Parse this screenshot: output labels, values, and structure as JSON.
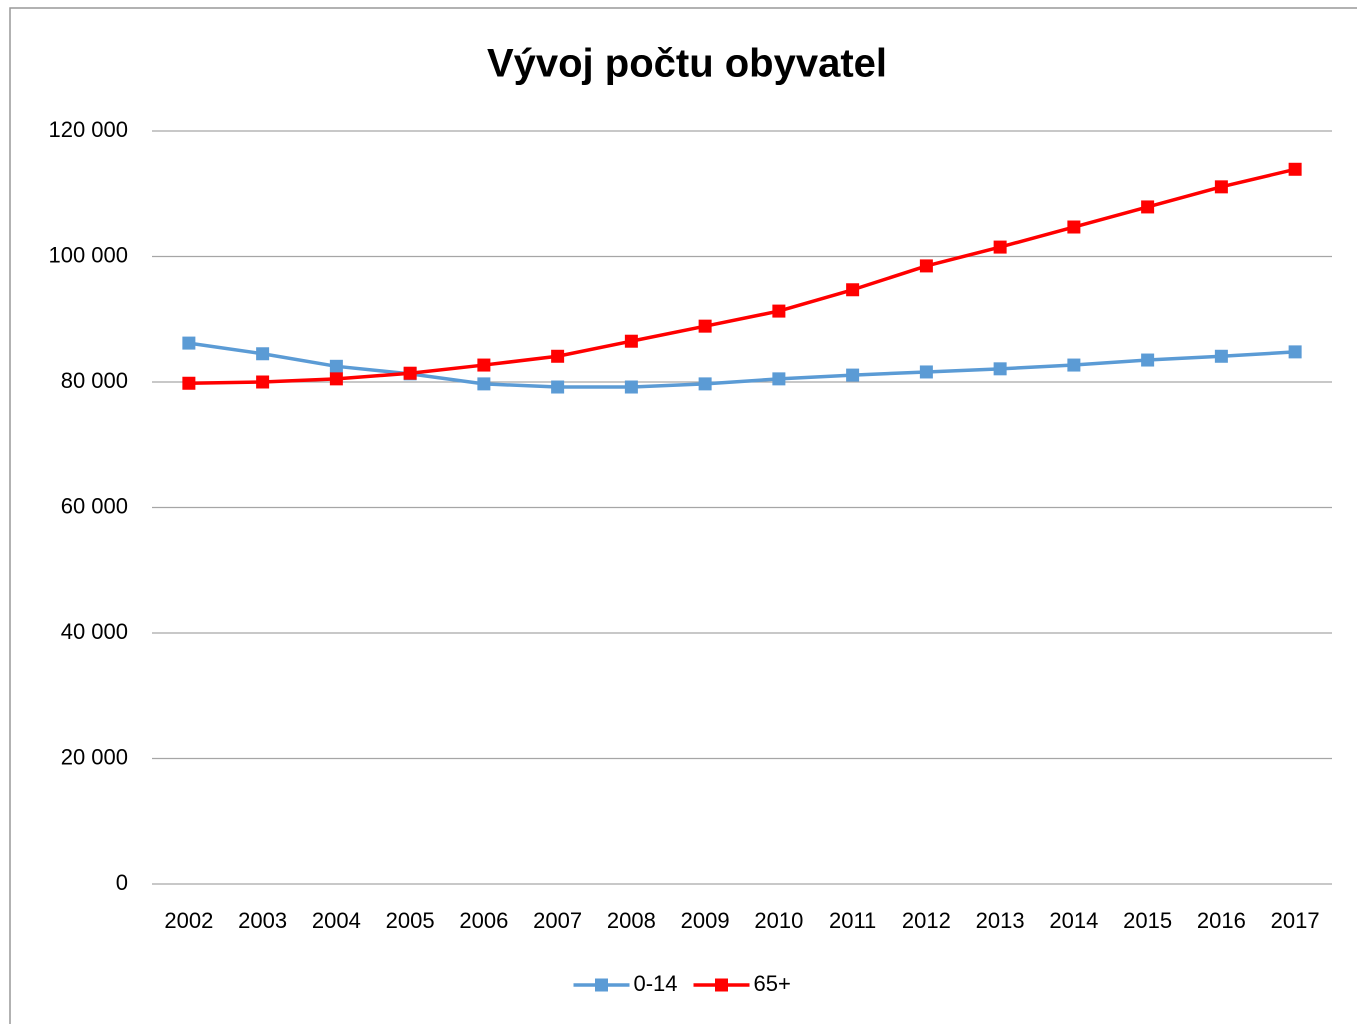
{
  "chart_data": {
    "type": "line",
    "title": "Vývoj počtu obyvatel",
    "categories": [
      "2002",
      "2003",
      "2004",
      "2005",
      "2006",
      "2007",
      "2008",
      "2009",
      "2010",
      "2011",
      "2012",
      "2013",
      "2014",
      "2015",
      "2016",
      "2017"
    ],
    "series": [
      {
        "name": "0-14",
        "color": "#5b9bd5",
        "values": [
          86200,
          84500,
          82500,
          81300,
          79700,
          79200,
          79200,
          79700,
          80500,
          81100,
          81600,
          82100,
          82700,
          83500,
          84100,
          84800
        ]
      },
      {
        "name": "65+",
        "color": "#ff0000",
        "values": [
          79800,
          80000,
          80500,
          81400,
          82700,
          84100,
          86500,
          88900,
          91300,
          94700,
          98500,
          101500,
          104700,
          107900,
          111100,
          113900
        ]
      }
    ],
    "ylim": [
      0,
      120000
    ],
    "yticks": [
      0,
      {
        "value": 20000,
        "label": "20 000"
      },
      {
        "value": 40000,
        "label": "40 000"
      },
      {
        "value": 60000,
        "label": "60 000"
      },
      {
        "value": 80000,
        "label": "80 000"
      },
      {
        "value": 100000,
        "label": "100 000"
      },
      {
        "value": 120000,
        "label": "120 000"
      }
    ],
    "grid": true,
    "legend": "bottom"
  }
}
